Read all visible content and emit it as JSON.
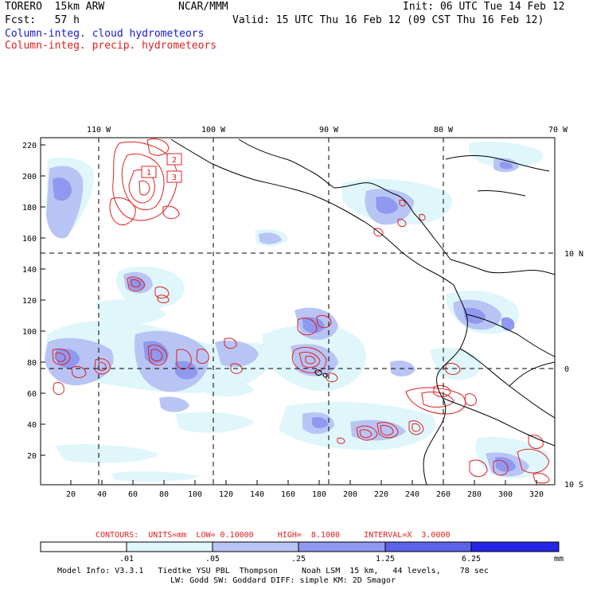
{
  "header": {
    "model": "TORERO  15km ARW",
    "org": "NCAR/MMM",
    "init": "Init: 06 UTC Tue 14 Feb 12",
    "fcst": "Fcst:   57 h",
    "valid": "Valid: 15 UTC Thu 16 Feb 12 (09 CST Thu 16 Feb 12)",
    "legend_cloud": "Column-integ. cloud hydrometeors",
    "legend_precip": "Column-integ. precip. hydrometeors"
  },
  "map": {
    "lon_labels": [
      "110 W",
      "100 W",
      "90 W",
      "80 W",
      "70 W"
    ],
    "lat_labels": [
      "10 N",
      "0",
      "10 S"
    ],
    "y_ticks": [
      "220",
      "200",
      "180",
      "160",
      "140",
      "120",
      "100",
      "80",
      "60",
      "40",
      "20"
    ],
    "x_ticks": [
      "20",
      "40",
      "60",
      "80",
      "100",
      "120",
      "140",
      "160",
      "180",
      "200",
      "220",
      "240",
      "260",
      "280",
      "300",
      "320"
    ],
    "contour_labels": [
      "1",
      "2",
      "3"
    ]
  },
  "footer": {
    "contours_line": "CONTOURS:  UNITS=mm  LOW= 0.10000     HIGH=  8.1000     INTERVAL=X  3.0000",
    "colorbar_ticks": [
      ".01",
      ".05",
      ".25",
      "1.25",
      "6.25"
    ],
    "colorbar_unit": "mm",
    "colorbar_colors": [
      "#ffffff",
      "#dff6fb",
      "#b8c4f4",
      "#8e99ef",
      "#5c63ea",
      "#2626e8"
    ],
    "model_info_1": "Model Info: V3.3.1   Tiedtke YSU PBL  Thompson     Noah LSM  15 km,   44 levels,    78 sec",
    "model_info_2": "LW: Godd SW: Goddard DIFF: simple KM: 2D Smagor"
  },
  "colors": {
    "cloud": "#1818d8",
    "precip": "#e02020"
  }
}
